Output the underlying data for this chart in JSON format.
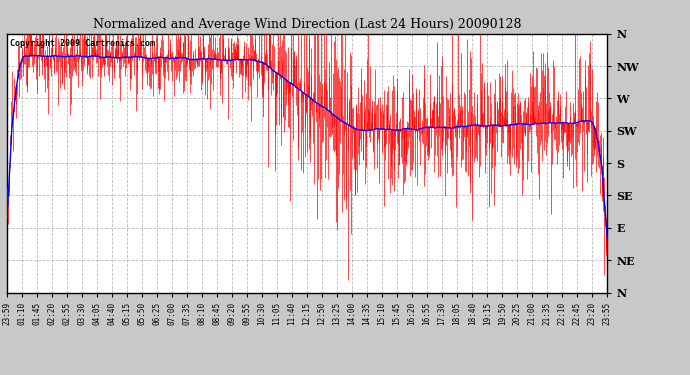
{
  "title": "Normalized and Average Wind Direction (Last 24 Hours) 20090128",
  "copyright": "Copyright 2009 Cartronics.com",
  "background_color": "#c8c8c8",
  "plot_bg_color": "#ffffff",
  "grid_color": "#aaaaaa",
  "red_color": "#ff0000",
  "blue_color": "#0000ff",
  "ytick_labels": [
    "N",
    "NW",
    "W",
    "SW",
    "S",
    "SE",
    "E",
    "NE",
    "N"
  ],
  "ytick_values": [
    360,
    315,
    270,
    225,
    180,
    135,
    90,
    45,
    0
  ],
  "xtick_labels": [
    "23:59",
    "01:10",
    "01:45",
    "02:20",
    "02:55",
    "03:30",
    "04:05",
    "04:40",
    "05:15",
    "05:50",
    "06:25",
    "07:00",
    "07:35",
    "08:10",
    "08:45",
    "09:20",
    "09:55",
    "10:30",
    "11:05",
    "11:40",
    "12:15",
    "12:50",
    "13:25",
    "14:00",
    "14:35",
    "15:10",
    "15:45",
    "16:20",
    "16:55",
    "17:30",
    "18:05",
    "18:40",
    "19:15",
    "19:50",
    "20:25",
    "21:00",
    "21:35",
    "22:10",
    "22:45",
    "23:20",
    "23:55"
  ],
  "ylim": [
    0,
    360
  ],
  "num_points": 1440,
  "seed": 42
}
